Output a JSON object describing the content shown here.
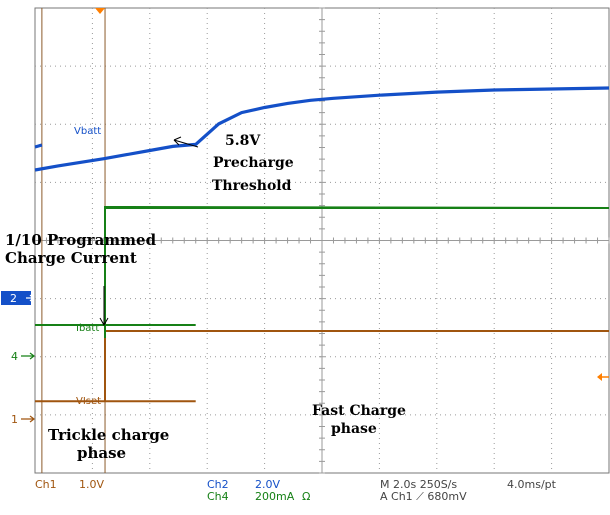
{
  "chart_data": {
    "type": "line",
    "title": "",
    "xlabel": "",
    "ylabel": "",
    "grid": true,
    "x_divisions": 10,
    "y_divisions": 8,
    "time_per_div_s": 2.0,
    "x": [
      0,
      0.4,
      0.8,
      1.2,
      1.6,
      2.0,
      2.4,
      2.8,
      3.2,
      3.6,
      4.0,
      4.4,
      4.8,
      5.2,
      6,
      7,
      8,
      9,
      10
    ],
    "series": [
      {
        "name": "Vbatt",
        "color": "#1450c8",
        "values": [
          5.3,
          5.38,
          5.45,
          5.52,
          5.6,
          5.68,
          5.76,
          5.8,
          6.2,
          6.42,
          6.52,
          6.6,
          6.66,
          6.7,
          6.76,
          6.82,
          6.86,
          6.88,
          6.9
        ]
      },
      {
        "name": "",
        "color": "#168016",
        "values": [
          0.04,
          0.04,
          0.04,
          0.04,
          0.04,
          0.04,
          0.04,
          0.04,
          0.4,
          0.4,
          0.4,
          0.4,
          0.4,
          0.4,
          0.4,
          0.4,
          0.4,
          0.4,
          0.4
        ]
      },
      {
        "name": "Ibatt",
        "color": "#168016",
        "values": [
          0.04,
          0.04,
          0.04,
          0.04,
          0.04,
          0.04,
          0.04,
          0.04,
          0.4,
          0.4,
          0.4,
          0.4,
          0.4,
          0.4,
          0.4,
          0.4,
          0.4,
          0.4,
          0.4
        ]
      },
      {
        "name": "VIset",
        "color": "#a0550f",
        "values": [
          0.1,
          0.1,
          0.1,
          0.1,
          0.1,
          0.1,
          0.1,
          0.1,
          1.0,
          1.0,
          1.0,
          1.0,
          1.0,
          1.0,
          1.0,
          1.0,
          1.0,
          1.0,
          1.0
        ]
      }
    ],
    "cursor_divisions": [
      0.12,
      1.22
    ],
    "channel_markers": [
      "2",
      "4",
      "1"
    ],
    "annotations": {
      "threshold_value": "5.8V",
      "threshold_line1": "Precharge",
      "threshold_line2": "Threshold",
      "current_line1": "1/10 Programmed",
      "current_line2": "Charge Current",
      "trickle_line1": "Trickle charge",
      "trickle_line2": "phase",
      "fast_line1": "Fast Charge",
      "fast_line2": "phase"
    },
    "readout": {
      "ch1": "Ch1",
      "ch1_scale": "1.0V",
      "ch2": "Ch2",
      "ch2_scale": "2.0V",
      "ch4": "Ch4",
      "ch4_scale": "200mA",
      "ohm": "Ω",
      "timebase": "M 2.0s 250S/s",
      "pts": "4.0ms/pt",
      "trigger": "A  Ch1  ⟋  680mV"
    },
    "colors": {
      "ch1": "#a0550f",
      "ch2": "#1450c8",
      "ch4": "#168016",
      "grid": "#9a9a9a",
      "trigger": "#ff7f00"
    }
  }
}
